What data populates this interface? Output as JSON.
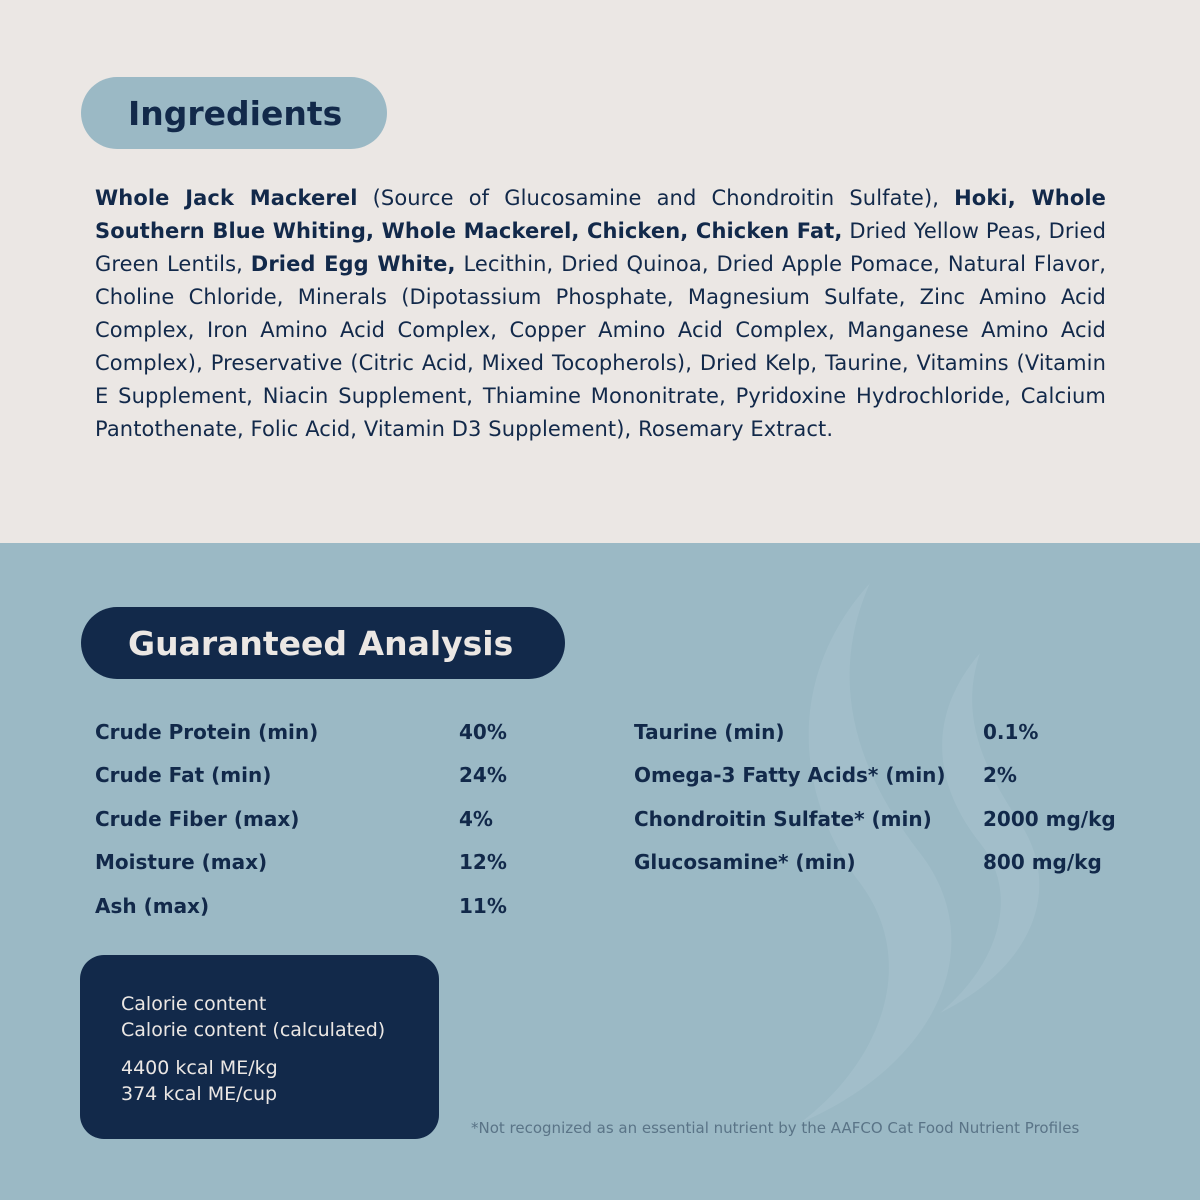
{
  "ingredients": {
    "title": "Ingredients",
    "segments": [
      {
        "text": "Whole Jack Mackerel",
        "bold": true
      },
      {
        "text": " (Source of Glucosamine and Chondroitin Sulfate), ",
        "bold": false
      },
      {
        "text": "Hoki, Whole Southern Blue Whiting, Whole Mackerel, Chicken, Chicken Fat,",
        "bold": true
      },
      {
        "text": " Dried Yellow Peas, Dried Green Lentils, ",
        "bold": false
      },
      {
        "text": "Dried Egg White,",
        "bold": true
      },
      {
        "text": " Lecithin, Dried Quinoa, Dried Apple Pomace, Natural Flavor, Choline Chloride, Minerals (Dipotassium Phosphate, Magnesium Sulfate, Zinc Amino Acid Complex, Iron Amino Acid Complex, Copper Amino Acid Complex, Manganese Amino Acid Complex),  Preservative (Citric Acid, Mixed Tocopherols), Dried Kelp, Taurine, Vitamins (Vitamin E Supplement, Niacin Supplement, Thiamine Mononitrate, Pyridoxine Hydrochloride, Calcium Pantothenate, Folic Acid, Vitamin D3 Supplement), Rosemary Extract.",
        "bold": false
      }
    ]
  },
  "analysis": {
    "title": "Guaranteed Analysis",
    "left": [
      {
        "label": "Crude Protein (min)",
        "value": "40%"
      },
      {
        "label": "Crude Fat (min)",
        "value": "24%"
      },
      {
        "label": "Crude Fiber (max)",
        "value": "4%"
      },
      {
        "label": "Moisture (max)",
        "value": "12%"
      },
      {
        "label": "Ash (max)",
        "value": "11%"
      }
    ],
    "right": [
      {
        "label": "Taurine (min)",
        "value": "0.1%"
      },
      {
        "label": "Omega-3 Fatty Acids* (min)",
        "value": "2%"
      },
      {
        "label": "Chondroitin Sulfate* (min)",
        "value": "2000 mg/kg"
      },
      {
        "label": "Glucosamine* (min)",
        "value": "800 mg/kg"
      }
    ]
  },
  "calorie": {
    "line1": "Calorie content",
    "line2": "Calorie content (calculated)",
    "line3": "4400 kcal ME/kg",
    "line4": "374 kcal ME/cup"
  },
  "footnote": "*Not recognized as an essential nutrient by the AAFCO Cat Food Nutrient Profiles",
  "colors": {
    "navy": "#12294a",
    "light_blue": "#9bb9c5",
    "cream": "#ebe7e4"
  }
}
